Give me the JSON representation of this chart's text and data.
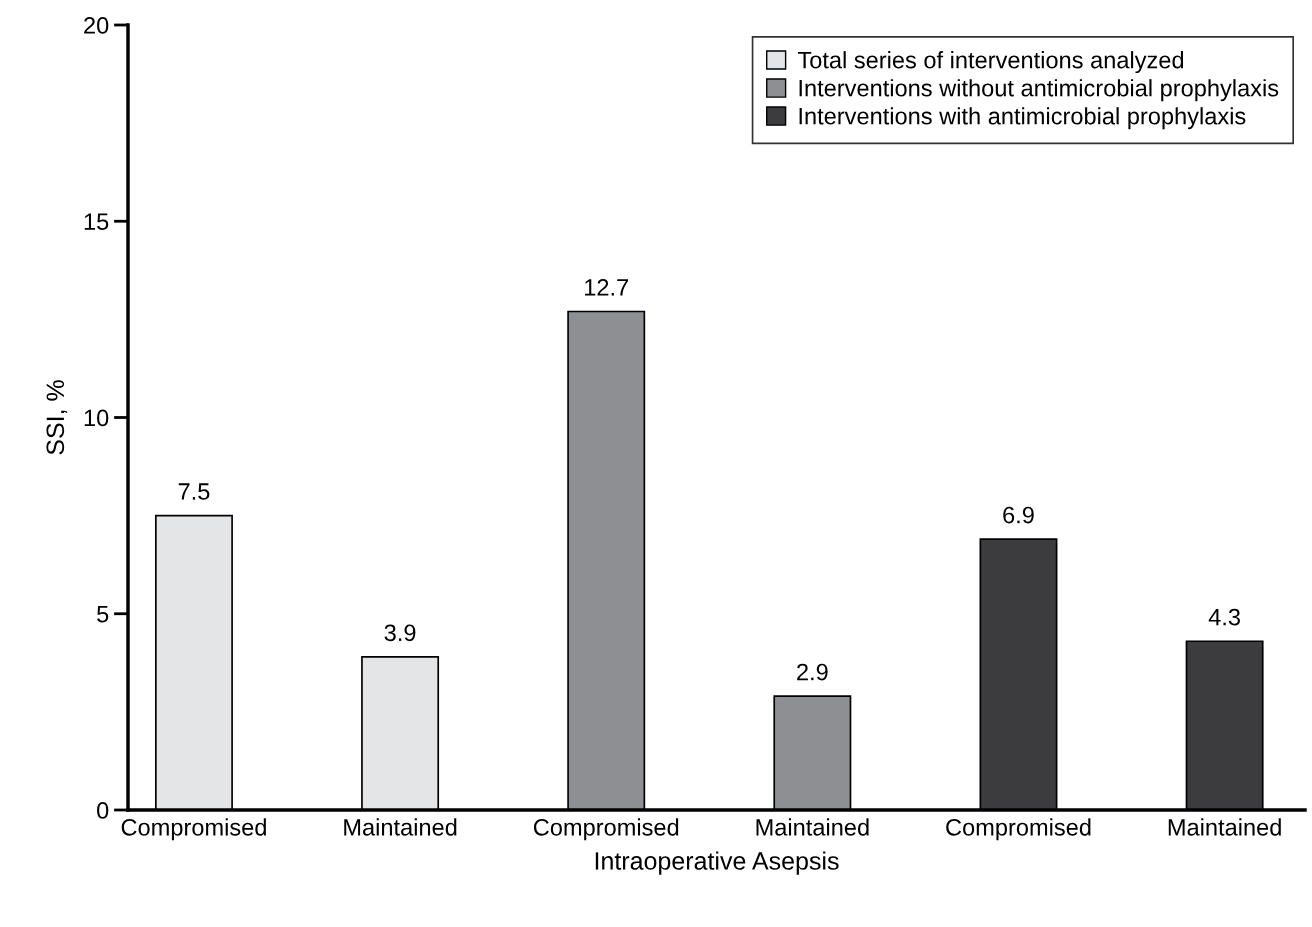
{
  "chart_data": {
    "type": "bar",
    "xlabel": "Intraoperative Asepsis",
    "ylabel": "SSI, %",
    "categories": [
      "Compromised",
      "Maintained",
      "Compromised",
      "Maintained",
      "Compromised",
      "Maintained"
    ],
    "series": [
      {
        "name": "Total series of interventions analyzed",
        "color": "#e4e5e7",
        "values": [
          7.5,
          3.9,
          null,
          null,
          null,
          null
        ]
      },
      {
        "name": "Interventions without antimicrobial prophylaxis",
        "color": "#8e8f93",
        "values": [
          null,
          null,
          12.7,
          2.9,
          null,
          null
        ]
      },
      {
        "name": "Interventions with antimicrobial prophylaxis",
        "color": "#3c3c3e",
        "values": [
          null,
          null,
          null,
          null,
          6.9,
          4.3
        ]
      }
    ],
    "ylim": [
      0,
      20
    ],
    "yticks": [
      0,
      5,
      10,
      15,
      20
    ],
    "grid": false,
    "legend": "top right",
    "data_labels": true
  }
}
